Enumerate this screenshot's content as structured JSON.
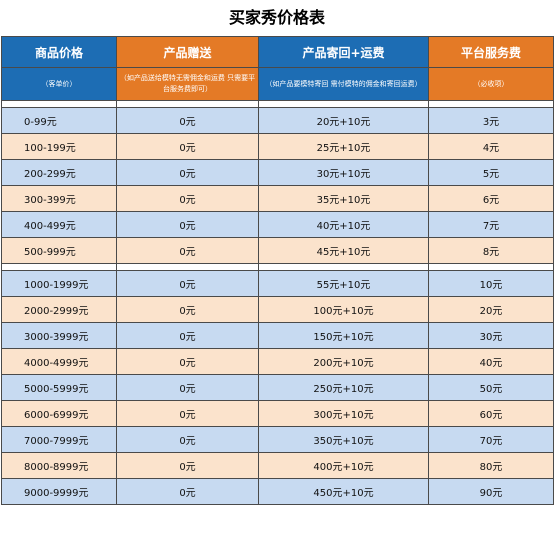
{
  "title": "买家秀价格表",
  "headers": [
    {
      "label": "商品价格",
      "note": "（客单价）"
    },
    {
      "label": "产品赠送",
      "note": "（如产品送给模特无需佣金和运费 只需要平台服务费即可）"
    },
    {
      "label": "产品寄回+运费",
      "note": "（如产品要模特寄回 需付模特的佣金和寄回运费）"
    },
    {
      "label": "平台服务费",
      "note": "（必收项）"
    }
  ],
  "groups": [
    {
      "rows": [
        {
          "price": "0-99元",
          "gift": "0元",
          "return": "20元+10元",
          "fee": "3元"
        },
        {
          "price": "100-199元",
          "gift": "0元",
          "return": "25元+10元",
          "fee": "4元"
        },
        {
          "price": "200-299元",
          "gift": "0元",
          "return": "30元+10元",
          "fee": "5元"
        },
        {
          "price": "300-399元",
          "gift": "0元",
          "return": "35元+10元",
          "fee": "6元"
        },
        {
          "price": "400-499元",
          "gift": "0元",
          "return": "40元+10元",
          "fee": "7元"
        },
        {
          "price": "500-999元",
          "gift": "0元",
          "return": "45元+10元",
          "fee": "8元"
        }
      ]
    },
    {
      "rows": [
        {
          "price": "1000-1999元",
          "gift": "0元",
          "return": "55元+10元",
          "fee": "10元"
        },
        {
          "price": "2000-2999元",
          "gift": "0元",
          "return": "100元+10元",
          "fee": "20元"
        },
        {
          "price": "3000-3999元",
          "gift": "0元",
          "return": "150元+10元",
          "fee": "30元"
        },
        {
          "price": "4000-4999元",
          "gift": "0元",
          "return": "200元+10元",
          "fee": "40元"
        },
        {
          "price": "5000-5999元",
          "gift": "0元",
          "return": "250元+10元",
          "fee": "50元"
        },
        {
          "price": "6000-6999元",
          "gift": "0元",
          "return": "300元+10元",
          "fee": "60元"
        },
        {
          "price": "7000-7999元",
          "gift": "0元",
          "return": "350元+10元",
          "fee": "70元"
        },
        {
          "price": "8000-8999元",
          "gift": "0元",
          "return": "400元+10元",
          "fee": "80元"
        },
        {
          "price": "9000-9999元",
          "gift": "0元",
          "return": "450元+10元",
          "fee": "90元"
        }
      ]
    }
  ],
  "colors": {
    "header_blue": "#1d6db4",
    "header_orange": "#e47a26",
    "row_blue": "#c7daf1",
    "row_peach": "#fbe3cc"
  }
}
